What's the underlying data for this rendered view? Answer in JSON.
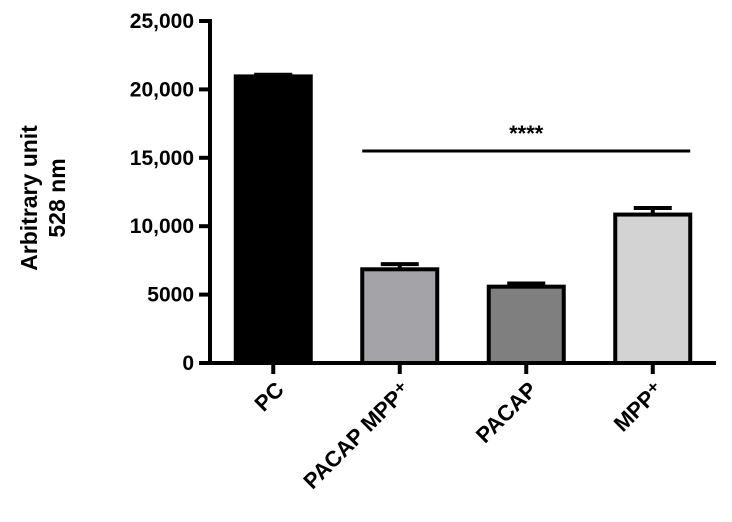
{
  "chart_data": {
    "type": "bar",
    "categories": [
      "PC",
      "PACAP MPP⁺",
      "PACAP",
      "MPP⁺"
    ],
    "values": [
      20950,
      6850,
      5580,
      10850
    ],
    "errors": [
      120,
      380,
      230,
      480
    ],
    "colors": [
      "#000000",
      "#a4a4a8",
      "#7f7f7f",
      "#d3d3d3"
    ],
    "title": "",
    "xlabel": "",
    "ylabel": [
      "Arbitrary unit",
      "528 nm"
    ],
    "ylim": [
      0,
      25000
    ],
    "yticks": [
      0,
      5000,
      10000,
      15000,
      20000,
      25000
    ],
    "ytick_labels": [
      "0",
      "5000",
      "10,000",
      "15,000",
      "20,000",
      "25,000"
    ],
    "grid": false,
    "annotations": [
      {
        "text": "****",
        "from_category": 1,
        "to_category": 3,
        "y": 15500
      }
    ]
  }
}
